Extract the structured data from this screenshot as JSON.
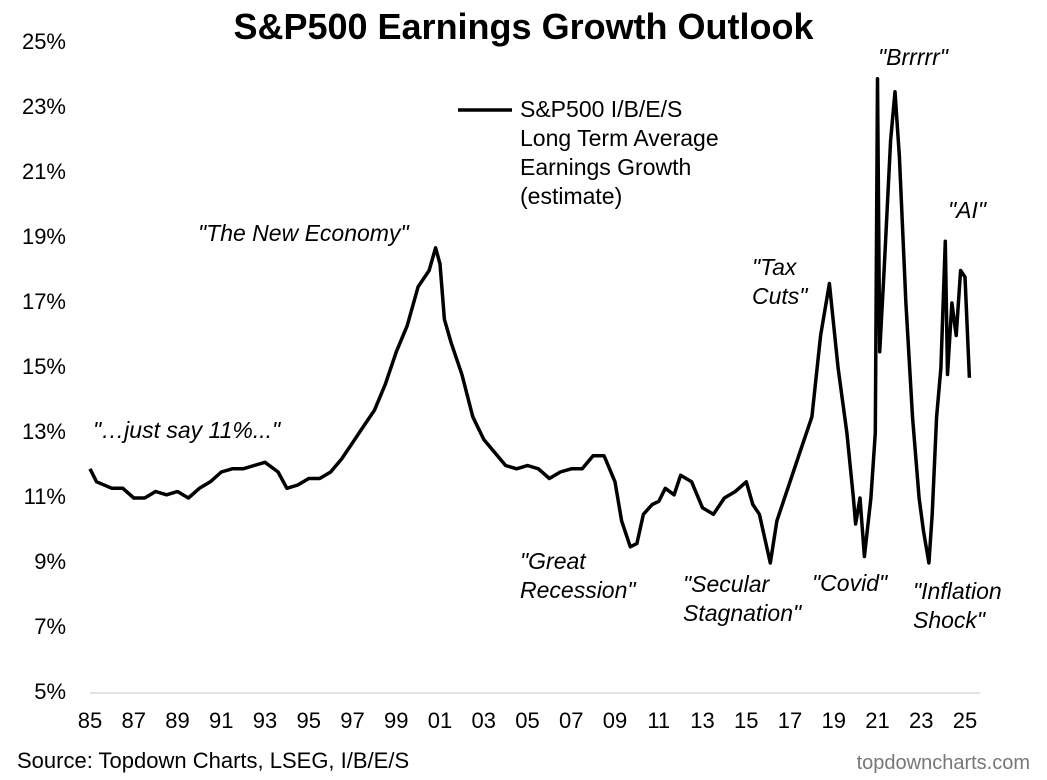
{
  "chart_data": {
    "type": "line",
    "title": "S&P500 Earnings Growth Outlook",
    "source": "Source: Topdown Charts, LSEG, I/B/E/S",
    "credit": "topdowncharts.com",
    "legend": "top-center",
    "grid": false,
    "xlim": [
      1985,
      2025
    ],
    "ylim": [
      5,
      25
    ],
    "xticks": [
      {
        "value": 1985,
        "label": "85"
      },
      {
        "value": 1987,
        "label": "87"
      },
      {
        "value": 1989,
        "label": "89"
      },
      {
        "value": 1991,
        "label": "91"
      },
      {
        "value": 1993,
        "label": "93"
      },
      {
        "value": 1995,
        "label": "95"
      },
      {
        "value": 1997,
        "label": "97"
      },
      {
        "value": 1999,
        "label": "99"
      },
      {
        "value": 2001,
        "label": "01"
      },
      {
        "value": 2003,
        "label": "03"
      },
      {
        "value": 2005,
        "label": "05"
      },
      {
        "value": 2007,
        "label": "07"
      },
      {
        "value": 2009,
        "label": "09"
      },
      {
        "value": 2011,
        "label": "11"
      },
      {
        "value": 2013,
        "label": "13"
      },
      {
        "value": 2015,
        "label": "15"
      },
      {
        "value": 2017,
        "label": "17"
      },
      {
        "value": 2019,
        "label": "19"
      },
      {
        "value": 2021,
        "label": "21"
      },
      {
        "value": 2023,
        "label": "23"
      },
      {
        "value": 2025,
        "label": "25"
      }
    ],
    "yticks": [
      {
        "value": 5,
        "label": "5%"
      },
      {
        "value": 7,
        "label": "7%"
      },
      {
        "value": 9,
        "label": "9%"
      },
      {
        "value": 11,
        "label": "11%"
      },
      {
        "value": 13,
        "label": "13%"
      },
      {
        "value": 15,
        "label": "15%"
      },
      {
        "value": 17,
        "label": "17%"
      },
      {
        "value": 19,
        "label": "19%"
      },
      {
        "value": 21,
        "label": "21%"
      },
      {
        "value": 23,
        "label": "23%"
      },
      {
        "value": 25,
        "label": "25%"
      }
    ],
    "annotations": [
      "\"The New Economy\"",
      "\"…just say 11%...\"",
      "\"Great\nRecession\"",
      "\"Secular\nStagnation\"",
      "\"Tax\nCuts\"",
      "\"Covid\"",
      "\"Brrrrr\"",
      "\"AI\"",
      "\"Inflation\nShock\""
    ],
    "x": [
      1985,
      1985.3,
      1986,
      1986.5,
      1987,
      1987.5,
      1988,
      1988.5,
      1989,
      1989.5,
      1990,
      1990.5,
      1991,
      1991.5,
      1992,
      1992.5,
      1993,
      1993.6,
      1994,
      1994.5,
      1995,
      1995.5,
      1996,
      1996.5,
      1997,
      1997.5,
      1998,
      1998.5,
      1999,
      1999.5,
      2000,
      2000.5,
      2000.8,
      2001,
      2001.2,
      2001.5,
      2002,
      2002.5,
      2003,
      2003.5,
      2004,
      2004.5,
      2005,
      2005.5,
      2006,
      2006.5,
      2007,
      2007.5,
      2008,
      2008.5,
      2009,
      2009.3,
      2009.7,
      2010,
      2010.3,
      2010.7,
      2011,
      2011.3,
      2011.7,
      2012,
      2012.5,
      2013,
      2013.5,
      2014,
      2014.5,
      2015,
      2015.3,
      2015.6,
      2016.1,
      2016.4,
      2017,
      2017.5,
      2018,
      2018.4,
      2018.8,
      2019.2,
      2019.6,
      2019.9,
      2020.0,
      2020.2,
      2020.4,
      2020.7,
      2020.9,
      2021.0,
      2021.1,
      2021.3,
      2021.6,
      2021.8,
      2022.0,
      2022.3,
      2022.6,
      2022.9,
      2023.1,
      2023.35,
      2023.5,
      2023.7,
      2023.9,
      2024.1,
      2024.2,
      2024.4,
      2024.6,
      2024.8,
      2025.0,
      2025.2
    ],
    "series": [
      {
        "name": "S&P500 I/B/E/S\nLong Term Average\nEarnings Growth\n(estimate)",
        "color": "#000000",
        "values": [
          11.9,
          11.5,
          11.3,
          11.3,
          11.0,
          11.0,
          11.2,
          11.1,
          11.2,
          11.0,
          11.3,
          11.5,
          11.8,
          11.9,
          11.9,
          12.0,
          12.1,
          11.8,
          11.3,
          11.4,
          11.6,
          11.6,
          11.8,
          12.2,
          12.7,
          13.2,
          13.7,
          14.5,
          15.5,
          16.3,
          17.5,
          18.0,
          18.7,
          18.2,
          16.5,
          15.8,
          14.8,
          13.5,
          12.8,
          12.4,
          12.0,
          11.9,
          12.0,
          11.9,
          11.6,
          11.8,
          11.9,
          11.9,
          12.3,
          12.3,
          11.5,
          10.3,
          9.5,
          9.6,
          10.5,
          10.8,
          10.9,
          11.3,
          11.1,
          11.7,
          11.5,
          10.7,
          10.5,
          11.0,
          11.2,
          11.5,
          10.8,
          10.5,
          9.0,
          10.3,
          11.5,
          12.5,
          13.5,
          16.0,
          17.6,
          15.0,
          13.0,
          11.0,
          10.2,
          11.0,
          9.2,
          11.0,
          13.0,
          23.9,
          15.5,
          18.0,
          22.0,
          23.5,
          21.5,
          17.0,
          13.5,
          11.0,
          10.0,
          9.0,
          10.5,
          13.5,
          15.0,
          18.9,
          14.8,
          17.0,
          16.0,
          18.0,
          17.8,
          14.7
        ]
      }
    ]
  }
}
